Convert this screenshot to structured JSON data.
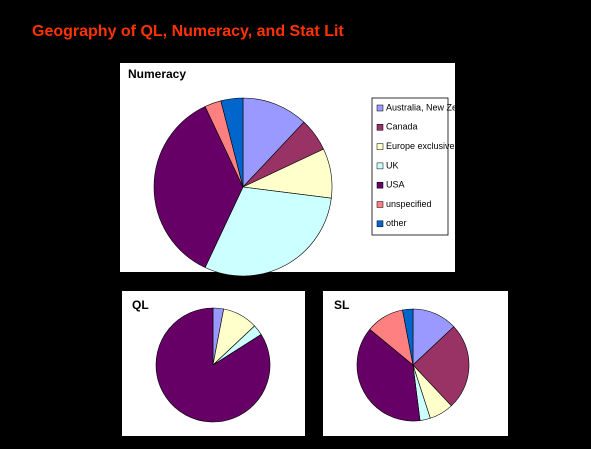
{
  "title": "Geography of QL, Numeracy, and Stat Lit",
  "chart_data": [
    {
      "type": "pie",
      "title": "Numeracy",
      "categories": [
        "Australia, New Zealand",
        "Canada",
        "Europe exclusive of UK",
        "UK",
        "USA",
        "unspecified",
        "other"
      ],
      "values": [
        12,
        6,
        9,
        30,
        36,
        3,
        4
      ],
      "colors": [
        "#9999ff",
        "#993366",
        "#ffffcc",
        "#ccffff",
        "#660066",
        "#ff8080",
        "#0066cc"
      ],
      "legend": "right"
    },
    {
      "type": "pie",
      "title": "QL",
      "values": [
        3,
        0,
        10,
        3,
        84,
        0,
        0
      ],
      "colors": [
        "#9999ff",
        "#993366",
        "#ffffcc",
        "#ccffff",
        "#660066",
        "#ff8080",
        "#0066cc"
      ]
    },
    {
      "type": "pie",
      "title": "SL",
      "values": [
        13,
        25,
        7,
        3,
        38,
        11,
        3
      ],
      "colors": [
        "#9999ff",
        "#993366",
        "#ffffcc",
        "#ccffff",
        "#660066",
        "#ff8080",
        "#0066cc"
      ]
    }
  ]
}
